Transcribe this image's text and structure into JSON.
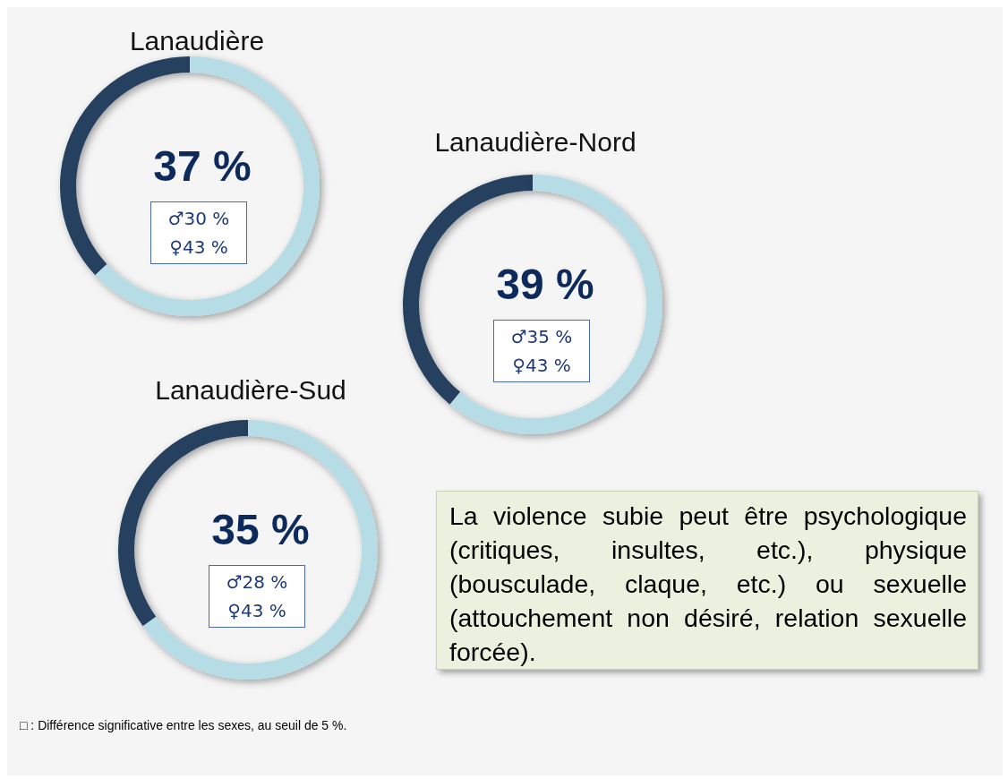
{
  "chart_data": [
    {
      "type": "donut",
      "title": "Lanaudière",
      "categories": [
        null,
        null
      ],
      "values": [
        37,
        63
      ],
      "colors": [
        "#253f5f",
        "#b6dce6"
      ],
      "annotations": [
        "37 %",
        "♂30 %",
        "♀43 %"
      ]
    },
    {
      "type": "donut",
      "title": "Lanaudière-Nord",
      "categories": [
        null,
        null
      ],
      "values": [
        39,
        61
      ],
      "colors": [
        "#253f5f",
        "#b6dce6"
      ],
      "annotations": [
        "39 %",
        "♂35 %",
        "♀43 %"
      ]
    },
    {
      "type": "donut",
      "title": "Lanaudière-Sud",
      "categories": [
        null,
        null
      ],
      "values": [
        35,
        65
      ],
      "colors": [
        "#253f5f",
        "#b6dce6"
      ],
      "annotations": [
        "35 %",
        "♂28 %",
        "♀43 %"
      ]
    },
    {
      "type": "other",
      "annotations": [
        "La violence subie peut être psychologique (critiques, insultes, etc.), physique (bousculade, claque, etc.) ou sexuelle (attouchement non désiré, relation sexuelle forcée).",
        "□ : Différence significative entre les sexes, au seuil de 5 %."
      ]
    }
  ]
}
